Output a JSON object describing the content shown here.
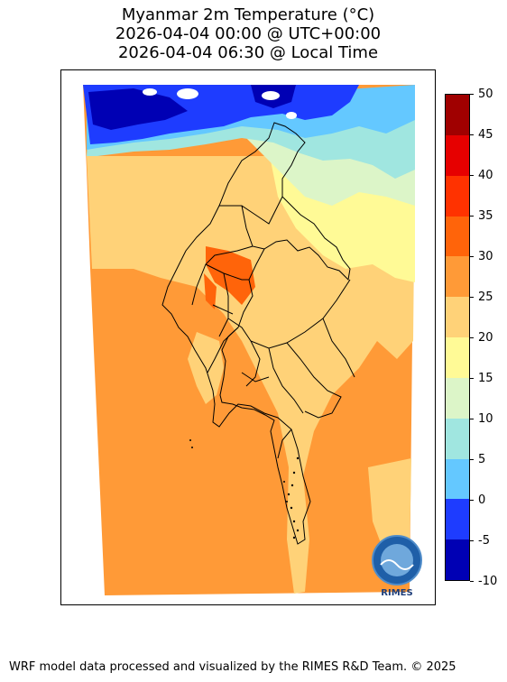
{
  "title": {
    "line1": "Myanmar 2m Temperature (°C)",
    "line2": "2026-04-04 00:00 @ UTC+00:00",
    "line3": "2026-04-04 06:30 @ Local Time"
  },
  "colorbar": {
    "ticks": [
      "50",
      "45",
      "40",
      "35",
      "30",
      "25",
      "20",
      "15",
      "10",
      "5",
      "0",
      "-5",
      "-10"
    ],
    "bins": [
      {
        "range": "-10 to -5",
        "color": "#0000b4"
      },
      {
        "range": "-5 to 0",
        "color": "#1e3cff"
      },
      {
        "range": "0 to 5",
        "color": "#64c8ff"
      },
      {
        "range": "5 to 10",
        "color": "#a0e6e0"
      },
      {
        "range": "10 to 15",
        "color": "#dcf5c8"
      },
      {
        "range": "15 to 20",
        "color": "#fffa96"
      },
      {
        "range": "20 to 25",
        "color": "#ffd278"
      },
      {
        "range": "25 to 30",
        "color": "#ff9a37"
      },
      {
        "range": "30 to 35",
        "color": "#ff640a"
      },
      {
        "range": "35 to 40",
        "color": "#ff3200"
      },
      {
        "range": "40 to 45",
        "color": "#e60000"
      },
      {
        "range": "45 to 50",
        "color": "#a00000"
      }
    ]
  },
  "logo": {
    "name": "RIMES",
    "ring_text": "Regional Integrated Multi-Hazard Early Warning System"
  },
  "footer": "WRF model data processed and visualized by the RIMES R&D Team. © 2025"
}
